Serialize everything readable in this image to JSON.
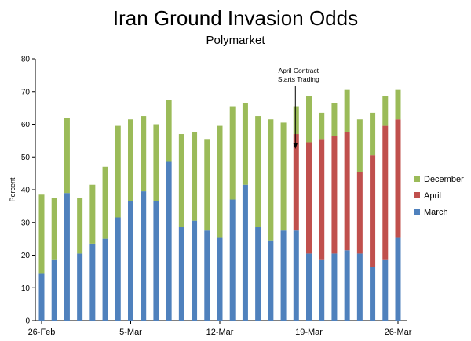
{
  "chart_data": {
    "type": "bar",
    "stacked": true,
    "title": "Iran Ground Invasion Odds",
    "subtitle": "Polymarket",
    "ylabel": "Percent",
    "xlabel": "",
    "ylim": [
      0,
      80
    ],
    "yticks": [
      0,
      10,
      20,
      30,
      40,
      50,
      60,
      70,
      80
    ],
    "x_tick_labels": [
      {
        "index": 0,
        "label": "26-Feb"
      },
      {
        "index": 7,
        "label": "5-Mar"
      },
      {
        "index": 14,
        "label": "12-Mar"
      },
      {
        "index": 21,
        "label": "19-Mar"
      },
      {
        "index": 28,
        "label": "26-Mar"
      }
    ],
    "legend_position": "right",
    "annotation": {
      "lines": [
        "April Contract",
        "Starts Trading"
      ],
      "bar_index": 20
    },
    "series": [
      {
        "name": "March",
        "color": "#4f81bd",
        "values": [
          14.5,
          18.5,
          39,
          20.5,
          23.5,
          25,
          31.5,
          36.5,
          39.5,
          36.5,
          48.5,
          28.5,
          30.5,
          27.5,
          25.5,
          37,
          41.5,
          28.5,
          24.5,
          27.5,
          27.5,
          20.5,
          18.5,
          20.5,
          21.5,
          20.5,
          16.5,
          18.5,
          25.5
        ]
      },
      {
        "name": "April",
        "color": "#c0504d",
        "values": [
          0,
          0,
          0,
          0,
          0,
          0,
          0,
          0,
          0,
          0,
          0,
          0,
          0,
          0,
          0,
          0,
          0,
          0,
          0,
          0,
          29.5,
          34,
          37,
          36,
          36,
          25,
          34,
          41,
          36
        ]
      },
      {
        "name": "December",
        "color": "#9bbb59",
        "values": [
          24,
          19,
          23,
          17,
          18,
          22,
          28,
          25,
          23,
          23.5,
          19,
          28.5,
          27,
          28,
          34,
          28.5,
          25,
          34,
          37,
          33,
          8.5,
          14,
          8,
          10,
          13,
          16,
          13,
          9,
          9
        ]
      }
    ]
  }
}
